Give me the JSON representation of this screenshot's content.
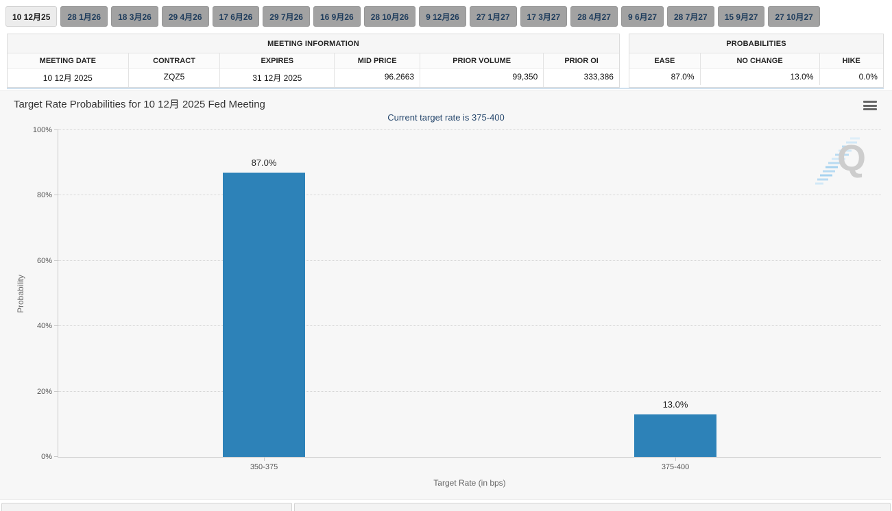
{
  "tabs": [
    {
      "label": "10 12月25",
      "active": true
    },
    {
      "label": "28 1月26",
      "active": false
    },
    {
      "label": "18 3月26",
      "active": false
    },
    {
      "label": "29 4月26",
      "active": false
    },
    {
      "label": "17 6月26",
      "active": false
    },
    {
      "label": "29 7月26",
      "active": false
    },
    {
      "label": "16 9月26",
      "active": false
    },
    {
      "label": "28 10月26",
      "active": false
    },
    {
      "label": "9 12月26",
      "active": false
    },
    {
      "label": "27 1月27",
      "active": false
    },
    {
      "label": "17 3月27",
      "active": false
    },
    {
      "label": "28 4月27",
      "active": false
    },
    {
      "label": "9 6月27",
      "active": false
    },
    {
      "label": "28 7月27",
      "active": false
    },
    {
      "label": "15 9月27",
      "active": false
    },
    {
      "label": "27 10月27",
      "active": false
    }
  ],
  "meeting_info": {
    "title": "MEETING INFORMATION",
    "columns": [
      "MEETING DATE",
      "CONTRACT",
      "EXPIRES",
      "MID PRICE",
      "PRIOR VOLUME",
      "PRIOR OI"
    ],
    "values": [
      "10 12月 2025",
      "ZQZ5",
      "31 12月 2025",
      "96.2663",
      "99,350",
      "333,386"
    ]
  },
  "probabilities": {
    "title": "PROBABILITIES",
    "columns": [
      "EASE",
      "NO CHANGE",
      "HIKE"
    ],
    "values": [
      "87.0%",
      "13.0%",
      "0.0%"
    ]
  },
  "watermark_letter": "Q",
  "chart_data": {
    "type": "bar",
    "title": "Target Rate Probabilities for 10 12月 2025 Fed Meeting",
    "subtitle": "Current target rate is 375-400",
    "categories": [
      "350-375",
      "375-400"
    ],
    "values": [
      87.0,
      13.0
    ],
    "data_labels": [
      "87.0%",
      "13.0%"
    ],
    "xlabel": "Target Rate (in bps)",
    "ylabel": "Probability",
    "ylim": [
      0,
      100
    ],
    "yticks": [
      0,
      20,
      40,
      60,
      80,
      100
    ],
    "ytick_labels": [
      "0%",
      "20%",
      "40%",
      "60%",
      "80%",
      "100%"
    ],
    "bar_color": "#2d82b8",
    "grid": "horizontal-dotted",
    "legend_position": "none"
  }
}
